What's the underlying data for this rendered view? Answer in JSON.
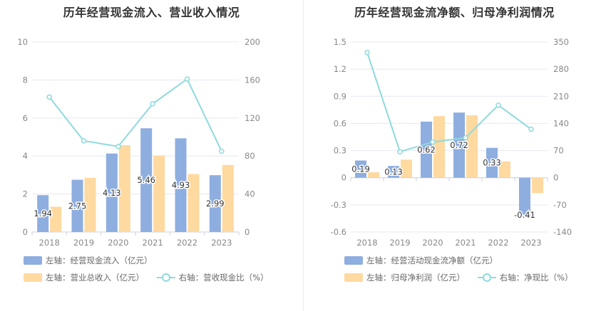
{
  "colors": {
    "series1": "#8eaee0",
    "series2": "#fed9a0",
    "series3": "#8fdadd"
  },
  "charts": [
    {
      "title": "历年经营现金流入、营业收入情况",
      "legend": {
        "s1": "左轴：经营现金流入（亿元）",
        "s2": "左轴：营业总收入（亿元）",
        "s3": "右轴：营收现金比（%）"
      }
    },
    {
      "title": "历年经营现金流净额、归母净利润情况",
      "legend": {
        "s1": "左轴：经营活动现金流净额（亿元）",
        "s2": "左轴：归母净利润（亿元）",
        "s3": "右轴：净现比（%）"
      }
    }
  ],
  "chart_data": [
    {
      "type": "bar",
      "title": "历年经营现金流入、营业收入情况",
      "categories": [
        "2018",
        "2019",
        "2020",
        "2021",
        "2022",
        "2023"
      ],
      "y_left": {
        "min": 0,
        "max": 10,
        "ticks": [
          "0",
          "2",
          "4",
          "6",
          "8",
          "10"
        ]
      },
      "y_right": {
        "min": 0,
        "max": 200,
        "ticks": [
          "0",
          "40",
          "80",
          "120",
          "160",
          "200"
        ]
      },
      "series": [
        {
          "name": "左轴：经营现金流入（亿元）",
          "axis": "left",
          "type": "bar",
          "values": [
            1.94,
            2.75,
            4.13,
            5.46,
            4.93,
            2.99
          ],
          "labels": [
            "1.94",
            "2.75",
            "4.13",
            "5.46",
            "4.93",
            "2.99"
          ]
        },
        {
          "name": "左轴：营业总收入（亿元）",
          "axis": "left",
          "type": "bar",
          "values": [
            1.33,
            2.85,
            4.57,
            4.03,
            3.05,
            3.53
          ]
        },
        {
          "name": "右轴：营收现金比（%）",
          "axis": "right",
          "type": "line",
          "values": [
            142,
            96,
            90,
            135,
            161,
            85
          ]
        }
      ],
      "grid": true,
      "legend_position": "bottom"
    },
    {
      "type": "bar",
      "title": "历年经营现金流净额、归母净利润情况",
      "categories": [
        "2018",
        "2019",
        "2020",
        "2021",
        "2022",
        "2023"
      ],
      "y_left": {
        "min": -0.6,
        "max": 1.5,
        "ticks": [
          "-0.6",
          "-0.3",
          "0",
          "0.3",
          "0.6",
          "0.9",
          "1.2",
          "1.5"
        ]
      },
      "y_right": {
        "min": -140,
        "max": 350,
        "ticks": [
          "-140",
          "-70",
          "0",
          "70",
          "140",
          "210",
          "280",
          "350"
        ]
      },
      "series": [
        {
          "name": "左轴：经营活动现金流净额（亿元）",
          "axis": "left",
          "type": "bar",
          "values": [
            0.19,
            0.13,
            0.62,
            0.72,
            0.33,
            -0.41
          ],
          "labels": [
            "0.19",
            "0.13",
            "0.62",
            "0.72",
            "0.33",
            "-0.41"
          ]
        },
        {
          "name": "左轴：归母净利润（亿元）",
          "axis": "left",
          "type": "bar",
          "values": [
            0.06,
            0.2,
            0.68,
            0.69,
            0.18,
            -0.17
          ]
        },
        {
          "name": "右轴：净现比（%）",
          "axis": "right",
          "type": "line",
          "values": [
            323,
            67,
            92,
            103,
            187,
            125
          ]
        }
      ],
      "grid": true,
      "legend_position": "bottom"
    }
  ]
}
